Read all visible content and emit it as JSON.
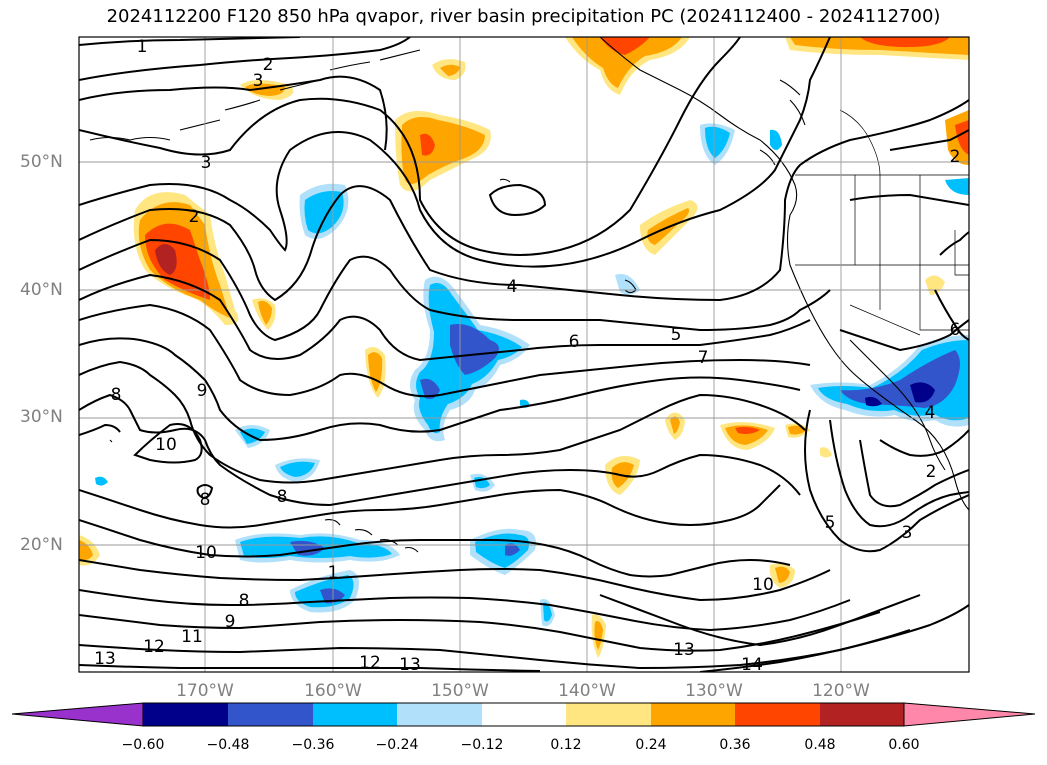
{
  "title": "2024112200 F120 850 hPa qvapor, river basin precipitation PC (2024112400 - 2024112700)",
  "lat_labels": [
    "50°N",
    "40°N",
    "30°N",
    "20°N"
  ],
  "lon_labels": [
    "170°W",
    "160°W",
    "150°W",
    "140°W",
    "130°W",
    "120°W"
  ],
  "contour_labels": [
    "1",
    "2",
    "3",
    "3",
    "2",
    "4",
    "5",
    "6",
    "7",
    "8",
    "9",
    "10",
    "8",
    "8",
    "10",
    "8",
    "9",
    "11",
    "12",
    "13",
    "12",
    "13",
    "14",
    "10",
    "13",
    "1",
    "5",
    "3",
    "2",
    "4",
    "6",
    "2"
  ],
  "colorbar": {
    "ticks": [
      "−0.60",
      "−0.48",
      "−0.36",
      "−0.24",
      "−0.12",
      "0.12",
      "0.24",
      "0.36",
      "0.48",
      "0.60"
    ],
    "colors": [
      "#9932cc",
      "#00008b",
      "#3355cc",
      "#00bfff",
      "#b0e0fa",
      "#ffffff",
      "#ffe680",
      "#ffa500",
      "#ff4500",
      "#b22222",
      "#ff88aa"
    ]
  }
}
